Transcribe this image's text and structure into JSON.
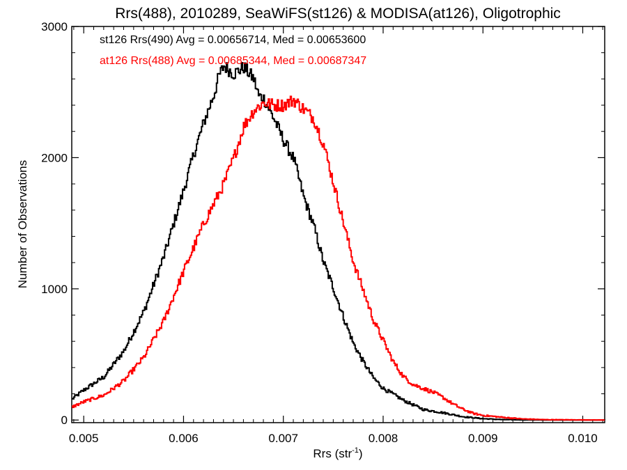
{
  "chart_data": {
    "type": "line",
    "title": "Rrs(488), 2010289, SeaWiFS(st126) & MODISA(at126), Oligotrophic",
    "xlabel": "Rrs (str",
    "xlabel_sup": "-1",
    "xlabel_suffix": ")",
    "ylabel": "Number of Observations",
    "xlim": [
      0.00488,
      0.01022
    ],
    "ylim": [
      -20,
      3000
    ],
    "xticks": [
      0.005,
      0.006,
      0.007,
      0.008,
      0.009,
      0.01
    ],
    "xtick_labels": [
      "0.005",
      "0.006",
      "0.007",
      "0.008",
      "0.009",
      "0.010"
    ],
    "yticks": [
      0,
      1000,
      2000,
      3000
    ],
    "ytick_labels": [
      "0",
      "1000",
      "2000",
      "3000"
    ],
    "grid": false,
    "series": [
      {
        "name": "st126 Rrs(490) Avg = 0.00656714, Med = 0.00653600",
        "color": "#000000",
        "points": [
          [
            0.00488,
            160
          ],
          [
            0.005,
            230
          ],
          [
            0.0052,
            330
          ],
          [
            0.0054,
            530
          ],
          [
            0.0056,
            830
          ],
          [
            0.0058,
            1250
          ],
          [
            0.006,
            1760
          ],
          [
            0.0061,
            2030
          ],
          [
            0.0062,
            2270
          ],
          [
            0.0063,
            2480
          ],
          [
            0.00635,
            2620
          ],
          [
            0.0064,
            2700
          ],
          [
            0.0065,
            2640
          ],
          [
            0.0066,
            2690
          ],
          [
            0.0067,
            2600
          ],
          [
            0.00675,
            2470
          ],
          [
            0.0068,
            2450
          ],
          [
            0.0069,
            2300
          ],
          [
            0.007,
            2130
          ],
          [
            0.0071,
            1990
          ],
          [
            0.0072,
            1700
          ],
          [
            0.0073,
            1480
          ],
          [
            0.0074,
            1200
          ],
          [
            0.0075,
            1000
          ],
          [
            0.0076,
            780
          ],
          [
            0.0077,
            580
          ],
          [
            0.0078,
            440
          ],
          [
            0.0079,
            320
          ],
          [
            0.008,
            240
          ],
          [
            0.0082,
            150
          ],
          [
            0.0084,
            80
          ],
          [
            0.0086,
            55
          ],
          [
            0.0088,
            25
          ],
          [
            0.009,
            10
          ],
          [
            0.0092,
            3
          ],
          [
            0.0096,
            0
          ],
          [
            0.01022,
            0
          ]
        ]
      },
      {
        "name": "at126 Rrs(488) Avg = 0.00685344, Med = 0.00687347",
        "color": "#ff0000",
        "points": [
          [
            0.00488,
            100
          ],
          [
            0.005,
            140
          ],
          [
            0.0052,
            190
          ],
          [
            0.0054,
            300
          ],
          [
            0.0056,
            480
          ],
          [
            0.0058,
            760
          ],
          [
            0.006,
            1140
          ],
          [
            0.0062,
            1500
          ],
          [
            0.0063,
            1650
          ],
          [
            0.0064,
            1800
          ],
          [
            0.0065,
            2000
          ],
          [
            0.0066,
            2240
          ],
          [
            0.0067,
            2360
          ],
          [
            0.0068,
            2420
          ],
          [
            0.0069,
            2400
          ],
          [
            0.007,
            2400
          ],
          [
            0.0071,
            2440
          ],
          [
            0.0072,
            2370
          ],
          [
            0.0073,
            2300
          ],
          [
            0.0074,
            2100
          ],
          [
            0.0075,
            1800
          ],
          [
            0.0076,
            1500
          ],
          [
            0.0077,
            1200
          ],
          [
            0.0078,
            980
          ],
          [
            0.0079,
            760
          ],
          [
            0.008,
            600
          ],
          [
            0.0081,
            440
          ],
          [
            0.0082,
            330
          ],
          [
            0.0083,
            270
          ],
          [
            0.0084,
            240
          ],
          [
            0.0085,
            210
          ],
          [
            0.0086,
            170
          ],
          [
            0.0087,
            120
          ],
          [
            0.0088,
            80
          ],
          [
            0.0089,
            50
          ],
          [
            0.009,
            35
          ],
          [
            0.0092,
            20
          ],
          [
            0.0094,
            8
          ],
          [
            0.0096,
            3
          ],
          [
            0.0098,
            2
          ],
          [
            0.01022,
            0
          ]
        ]
      }
    ]
  }
}
